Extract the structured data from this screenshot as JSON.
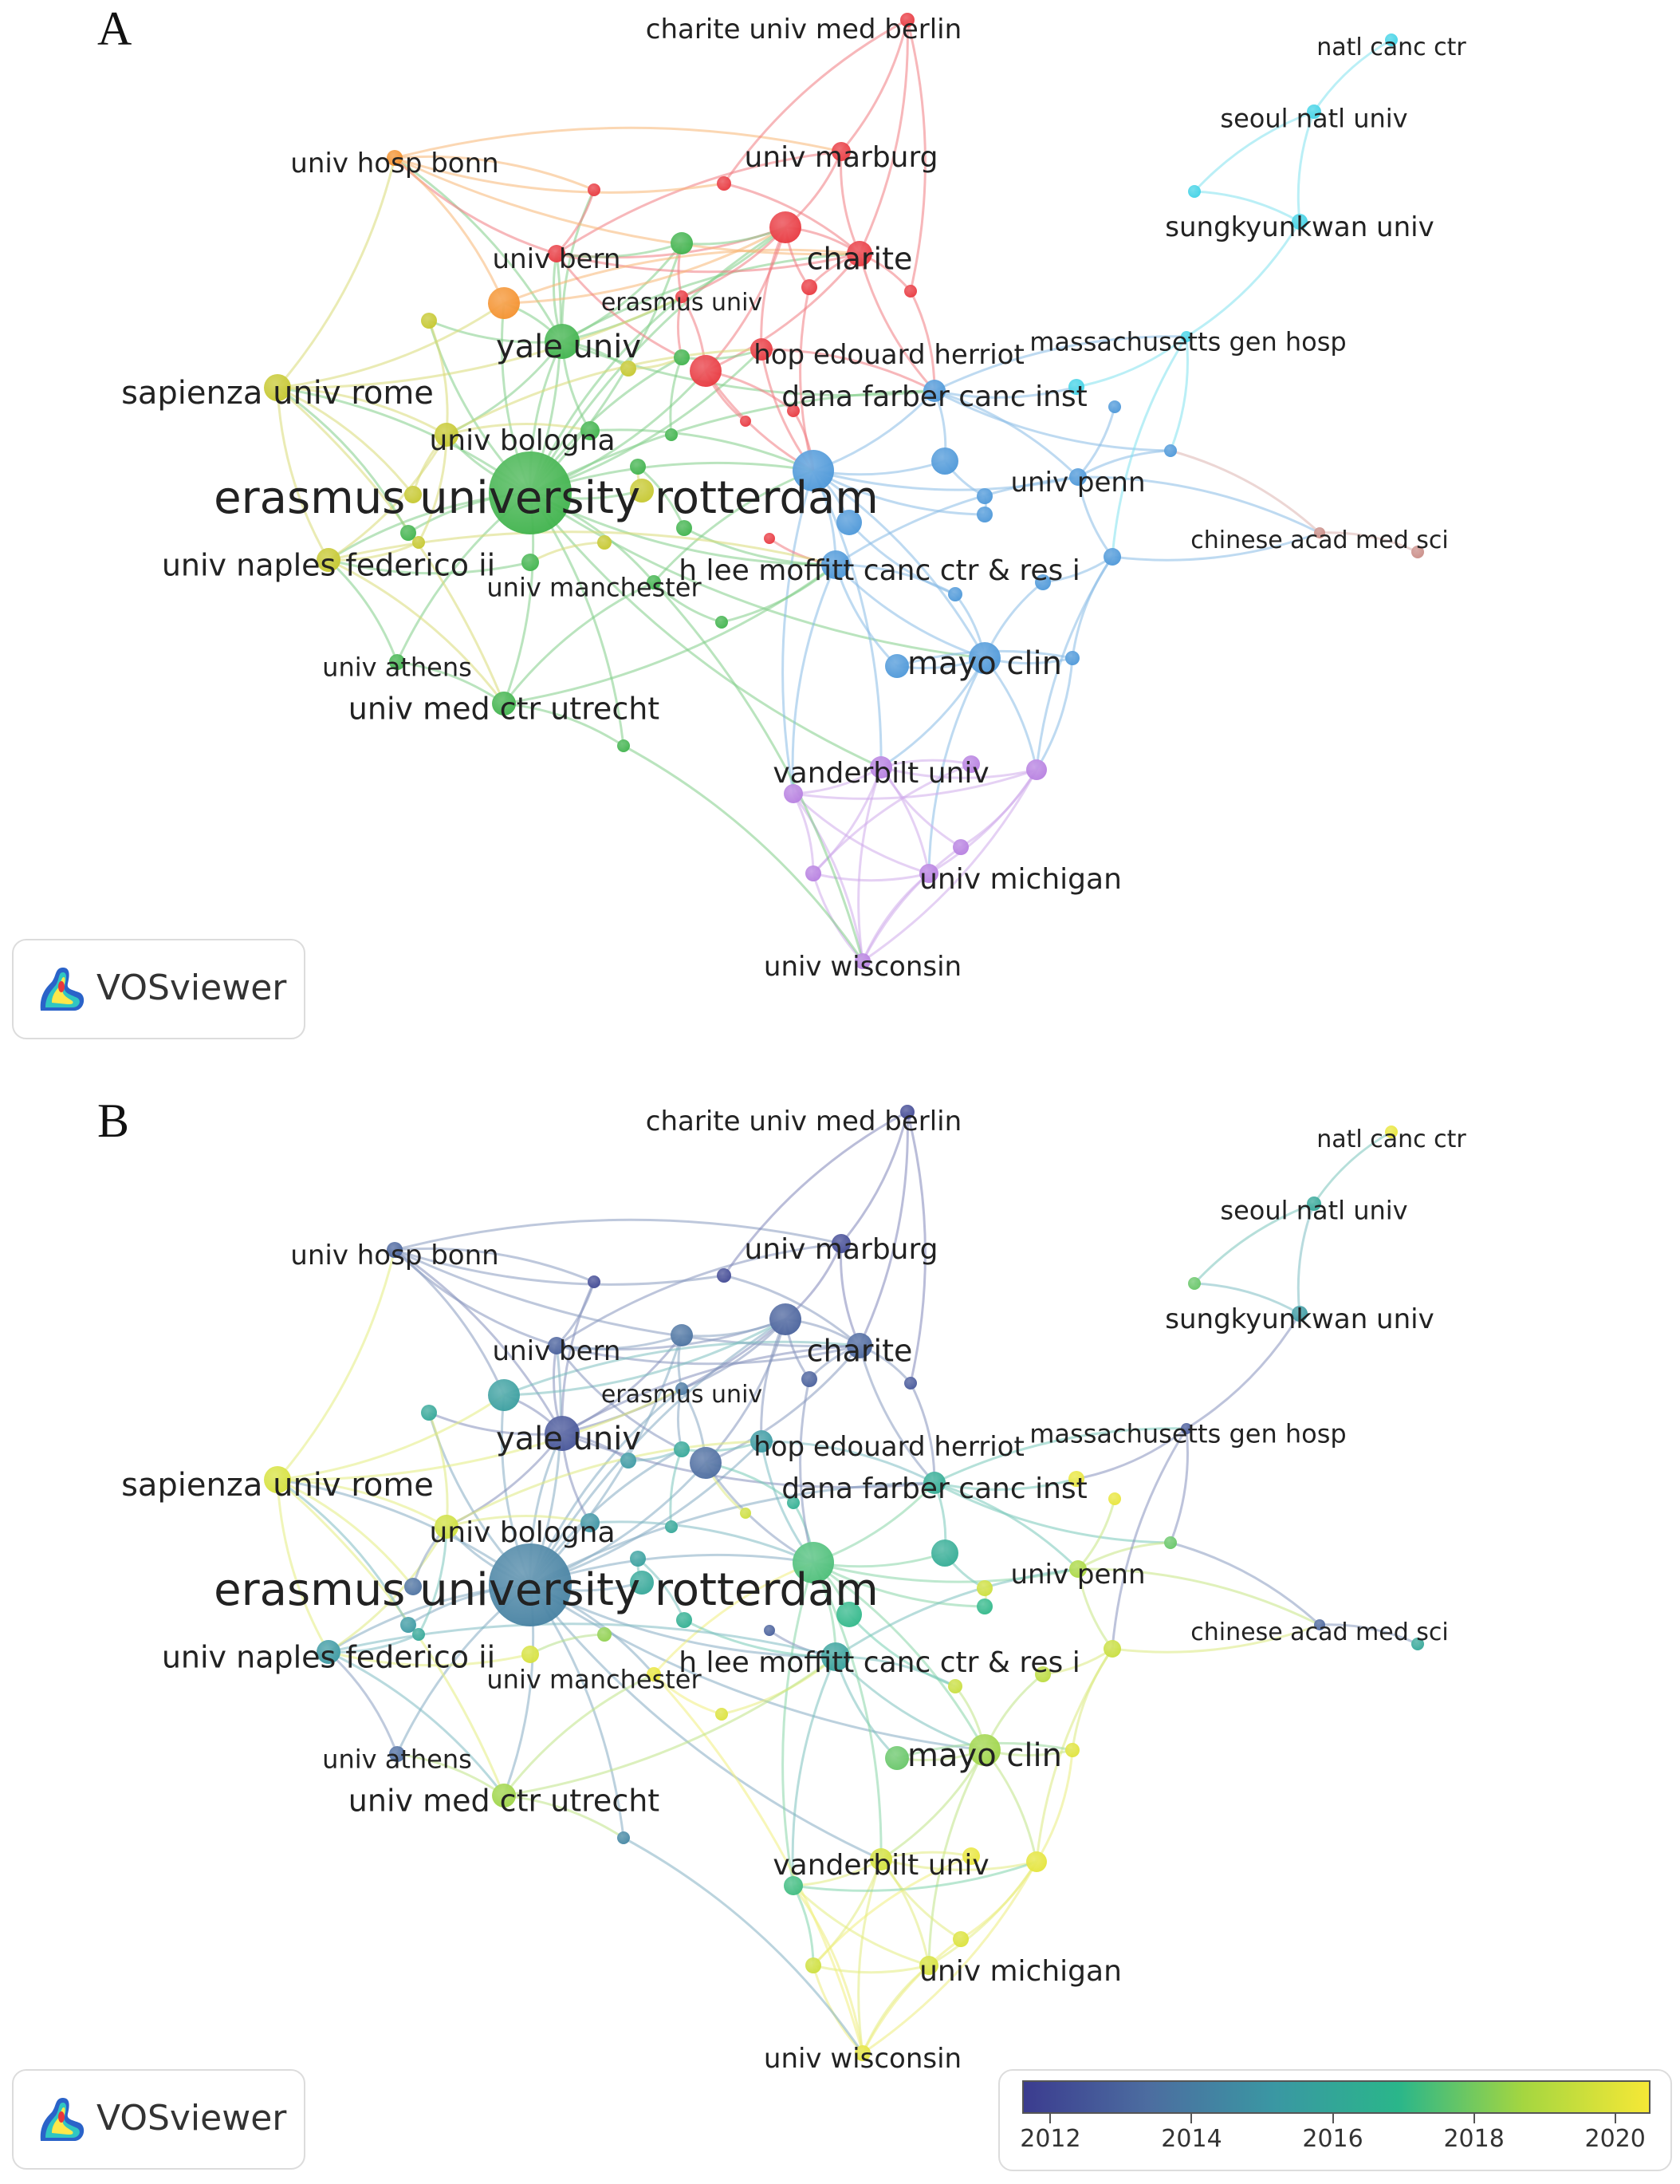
{
  "panels": [
    {
      "letter": "A",
      "mode": "cluster"
    },
    {
      "letter": "B",
      "mode": "overlay"
    }
  ],
  "logo_text": "VOSviewer",
  "scale": {
    "min_year": 2011.6,
    "max_year": 2020.5,
    "ticks": [
      "2012",
      "2014",
      "2016",
      "2018",
      "2020"
    ],
    "gradient": [
      "#3b3c8f",
      "#4c6da0",
      "#3a97a3",
      "#2ab68a",
      "#a5d640",
      "#f6e836"
    ]
  },
  "cluster_colors": {
    "red": "#e8363d",
    "orange": "#f4902b",
    "green": "#3db24a",
    "yellow": "#c5c72c",
    "blue": "#4a96d8",
    "purple": "#b67ee0",
    "cyan": "#3fd2e6",
    "brown": "#c98b85"
  },
  "nodes": [
    {
      "id": "erasmus-rotterdam",
      "label": "erasmus university rotterdam",
      "cluster": "green",
      "size": 52,
      "year": 2014.2,
      "fs": 56
    },
    {
      "id": "yale",
      "label": "yale univ",
      "cluster": "green",
      "size": 22,
      "year": 2012.4,
      "fs": 40
    },
    {
      "id": "sapienza",
      "label": "sapienza univ rome",
      "cluster": "yellow",
      "size": 17,
      "year": 2019.8,
      "fs": 40
    },
    {
      "id": "bologna",
      "label": "univ bologna",
      "cluster": "yellow",
      "size": 15,
      "year": 2019.6,
      "fs": 36
    },
    {
      "id": "naples",
      "label": "univ naples federico ii",
      "cluster": "yellow",
      "size": 15,
      "year": 2015.2,
      "fs": 38
    },
    {
      "id": "utrecht",
      "label": "univ med ctr utrecht",
      "cluster": "green",
      "size": 15,
      "year": 2018.6,
      "fs": 38
    },
    {
      "id": "athens",
      "label": "univ athens",
      "cluster": "green",
      "size": 10,
      "year": 2013.3,
      "fs": 32
    },
    {
      "id": "manchester",
      "label": "univ manchester",
      "cluster": "green",
      "size": 9,
      "year": 2020.2,
      "fs": 32
    },
    {
      "id": "bern",
      "label": "univ bern",
      "cluster": "red",
      "size": 11,
      "year": 2012.8,
      "fs": 34
    },
    {
      "id": "erasmus-univ",
      "label": "erasmus univ",
      "cluster": "red",
      "size": 8,
      "year": 2013.8,
      "fs": 30
    },
    {
      "id": "hop-edouard",
      "label": "hop edouard herriot",
      "cluster": "red",
      "size": 14,
      "year": 2015.3,
      "fs": 34
    },
    {
      "id": "charite",
      "label": "charite",
      "cluster": "red",
      "size": 16,
      "year": 2013.1,
      "fs": 38
    },
    {
      "id": "marburg",
      "label": "univ marburg",
      "cluster": "red",
      "size": 12,
      "year": 2012.0,
      "fs": 36
    },
    {
      "id": "charite-berlin",
      "label": "charite univ med berlin",
      "cluster": "red",
      "size": 9,
      "year": 2012.0,
      "fs": 34
    },
    {
      "id": "bonn",
      "label": "univ hosp bonn",
      "cluster": "orange",
      "size": 10,
      "year": 2013.0,
      "fs": 34
    },
    {
      "id": "dana-farber",
      "label": "dana farber canc inst",
      "cluster": "blue",
      "size": 14,
      "year": 2016.3,
      "fs": 36
    },
    {
      "id": "moffitt",
      "label": "h lee moffitt canc ctr & res i",
      "cluster": "blue",
      "size": 18,
      "year": 2015.7,
      "fs": 36
    },
    {
      "id": "mayo",
      "label": "mayo clin",
      "cluster": "blue",
      "size": 20,
      "year": 2018.6,
      "fs": 40
    },
    {
      "id": "penn",
      "label": "univ penn",
      "cluster": "blue",
      "size": 11,
      "year": 2018.8,
      "fs": 34
    },
    {
      "id": "mass-gen",
      "label": "massachusetts gen hosp",
      "cluster": "cyan",
      "size": 7,
      "year": 2012.6,
      "fs": 32
    },
    {
      "id": "natl-canc",
      "label": "natl canc ctr",
      "cluster": "cyan",
      "size": 8,
      "year": 2020.2,
      "fs": 30
    },
    {
      "id": "seoul",
      "label": "seoul natl univ",
      "cluster": "cyan",
      "size": 9,
      "year": 2016.0,
      "fs": 32
    },
    {
      "id": "sungkyunkwan",
      "label": "sungkyunkwan univ",
      "cluster": "cyan",
      "size": 10,
      "year": 2015.3,
      "fs": 34
    },
    {
      "id": "chinese-acad",
      "label": "chinese acad med sci",
      "cluster": "brown",
      "size": 7,
      "year": 2013.1,
      "fs": 30
    },
    {
      "id": "vanderbilt",
      "label": "vanderbilt univ",
      "cluster": "purple",
      "size": 14,
      "year": 2019.7,
      "fs": 36
    },
    {
      "id": "michigan",
      "label": "univ michigan",
      "cluster": "purple",
      "size": 12,
      "year": 2019.8,
      "fs": 36
    },
    {
      "id": "wisconsin",
      "label": "univ wisconsin",
      "cluster": "purple",
      "size": 10,
      "year": 2020.1,
      "fs": 34
    },
    {
      "id": "n-red1",
      "label": "",
      "cluster": "red",
      "size": 20,
      "year": 2012.9
    },
    {
      "id": "n-red2",
      "label": "",
      "cluster": "red",
      "size": 20,
      "year": 2013.3
    },
    {
      "id": "n-red3",
      "label": "",
      "cluster": "red",
      "size": 8,
      "year": 2012.0
    },
    {
      "id": "n-red4",
      "label": "",
      "cluster": "red",
      "size": 8,
      "year": 2016.5
    },
    {
      "id": "n-red5",
      "label": "",
      "cluster": "red",
      "size": 9,
      "year": 2012.0
    },
    {
      "id": "n-red6",
      "label": "",
      "cluster": "red",
      "size": 10,
      "year": 2012.8
    },
    {
      "id": "n-red7",
      "label": "",
      "cluster": "red",
      "size": 8,
      "year": 2012.5
    },
    {
      "id": "n-red8",
      "label": "",
      "cluster": "red",
      "size": 7,
      "year": 2012.8
    },
    {
      "id": "n-red9",
      "label": "",
      "cluster": "red",
      "size": 7,
      "year": 2019.6
    },
    {
      "id": "n-orange1",
      "label": "",
      "cluster": "orange",
      "size": 20,
      "year": 2015.5
    },
    {
      "id": "n-green1",
      "label": "",
      "cluster": "green",
      "size": 14,
      "year": 2013.6
    },
    {
      "id": "n-green2",
      "label": "",
      "cluster": "green",
      "size": 12,
      "year": 2015.0
    },
    {
      "id": "n-green3",
      "label": "",
      "cluster": "green",
      "size": 10,
      "year": 2016.0
    },
    {
      "id": "n-green4",
      "label": "",
      "cluster": "green",
      "size": 10,
      "year": 2015.6
    },
    {
      "id": "n-green5",
      "label": "",
      "cluster": "green",
      "size": 10,
      "year": 2016.5
    },
    {
      "id": "n-green6",
      "label": "",
      "cluster": "green",
      "size": 8,
      "year": 2016.0
    },
    {
      "id": "n-green7",
      "label": "",
      "cluster": "green",
      "size": 11,
      "year": 2019.8
    },
    {
      "id": "n-green8",
      "label": "",
      "cluster": "green",
      "size": 8,
      "year": 2019.9
    },
    {
      "id": "n-green9",
      "label": "",
      "cluster": "green",
      "size": 8,
      "year": 2014.4
    },
    {
      "id": "n-green10",
      "label": "",
      "cluster": "green",
      "size": 10,
      "year": 2015.2
    },
    {
      "id": "n-yellow1",
      "label": "",
      "cluster": "yellow",
      "size": 15,
      "year": 2016.0
    },
    {
      "id": "n-yellow2",
      "label": "",
      "cluster": "yellow",
      "size": 10,
      "year": 2016.0
    },
    {
      "id": "n-yellow3",
      "label": "",
      "cluster": "yellow",
      "size": 10,
      "year": 2015.2
    },
    {
      "id": "n-yellow4",
      "label": "",
      "cluster": "yellow",
      "size": 9,
      "year": 2018.4
    },
    {
      "id": "n-yellow5",
      "label": "",
      "cluster": "yellow",
      "size": 11,
      "year": 2013.5
    },
    {
      "id": "n-yellow6",
      "label": "",
      "cluster": "yellow",
      "size": 8,
      "year": 2016.0
    },
    {
      "id": "n-blue1",
      "label": "",
      "cluster": "blue",
      "size": 26,
      "year": 2017.4
    },
    {
      "id": "n-blue2",
      "label": "",
      "cluster": "blue",
      "size": 17,
      "year": 2016.3
    },
    {
      "id": "n-blue3",
      "label": "",
      "cluster": "blue",
      "size": 16,
      "year": 2017.0
    },
    {
      "id": "n-blue4",
      "label": "",
      "cluster": "blue",
      "size": 10,
      "year": 2017.0
    },
    {
      "id": "n-blue5",
      "label": "",
      "cluster": "blue",
      "size": 11,
      "year": 2019.5
    },
    {
      "id": "n-blue6",
      "label": "",
      "cluster": "blue",
      "size": 10,
      "year": 2019.2
    },
    {
      "id": "n-blue7",
      "label": "",
      "cluster": "blue",
      "size": 8,
      "year": 2017.8
    },
    {
      "id": "n-blue8",
      "label": "",
      "cluster": "blue",
      "size": 9,
      "year": 2019.5
    },
    {
      "id": "n-blue9",
      "label": "",
      "cluster": "blue",
      "size": 9,
      "year": 2020.0
    },
    {
      "id": "n-blue10",
      "label": "",
      "cluster": "blue",
      "size": 15,
      "year": 2017.8
    },
    {
      "id": "n-blue11",
      "label": "",
      "cluster": "blue",
      "size": 8,
      "year": 2020.2
    },
    {
      "id": "n-blue12",
      "label": "",
      "cluster": "blue",
      "size": 10,
      "year": 2019.6
    },
    {
      "id": "n-cyan1",
      "label": "",
      "cluster": "cyan",
      "size": 10,
      "year": 2020.2
    },
    {
      "id": "n-cyan2",
      "label": "",
      "cluster": "cyan",
      "size": 8,
      "year": 2017.8
    },
    {
      "id": "n-brown1",
      "label": "",
      "cluster": "brown",
      "size": 8,
      "year": 2016.0
    },
    {
      "id": "n-purple1",
      "label": "",
      "cluster": "purple",
      "size": 12,
      "year": 2017.2
    },
    {
      "id": "n-purple2",
      "label": "",
      "cluster": "purple",
      "size": 13,
      "year": 2020.1
    },
    {
      "id": "n-purple3",
      "label": "",
      "cluster": "purple",
      "size": 11,
      "year": 2020.2
    },
    {
      "id": "n-purple4",
      "label": "",
      "cluster": "purple",
      "size": 10,
      "year": 2019.6
    },
    {
      "id": "n-purple5",
      "label": "",
      "cluster": "purple",
      "size": 10,
      "year": 2019.9
    }
  ]
}
